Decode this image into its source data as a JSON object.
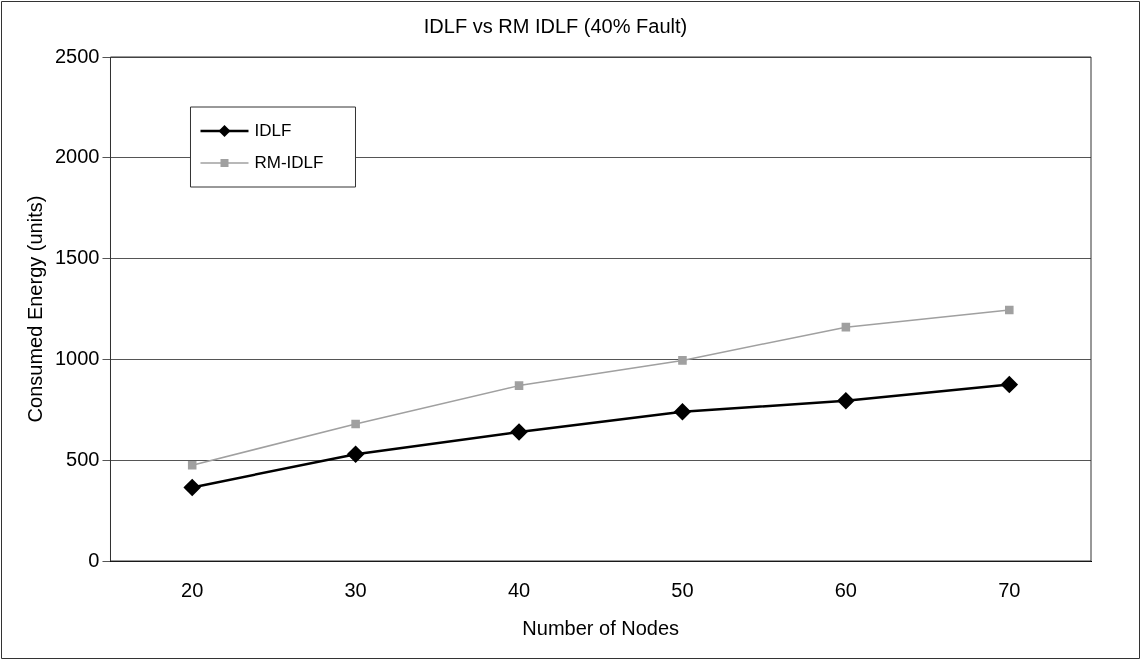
{
  "chart_data": {
    "type": "line",
    "title": "IDLF vs RM IDLF (40% Fault)",
    "xlabel": "Number of Nodes",
    "ylabel": "Consumed Energy (units)",
    "categories": [
      "20",
      "30",
      "40",
      "50",
      "60",
      "70"
    ],
    "series": [
      {
        "name": "IDLF",
        "color": "#000000",
        "marker": "diamond",
        "values": [
          365,
          530,
          640,
          740,
          795,
          875
        ]
      },
      {
        "name": "RM-IDLF",
        "color": "#a0a0a0",
        "marker": "square",
        "values": [
          475,
          680,
          870,
          995,
          1160,
          1245
        ]
      }
    ],
    "ylim": [
      0,
      2500
    ],
    "yticks": [
      0,
      500,
      1000,
      1500,
      2000,
      2500
    ],
    "grid": "y",
    "legend": "top left",
    "line_style": "solid"
  }
}
